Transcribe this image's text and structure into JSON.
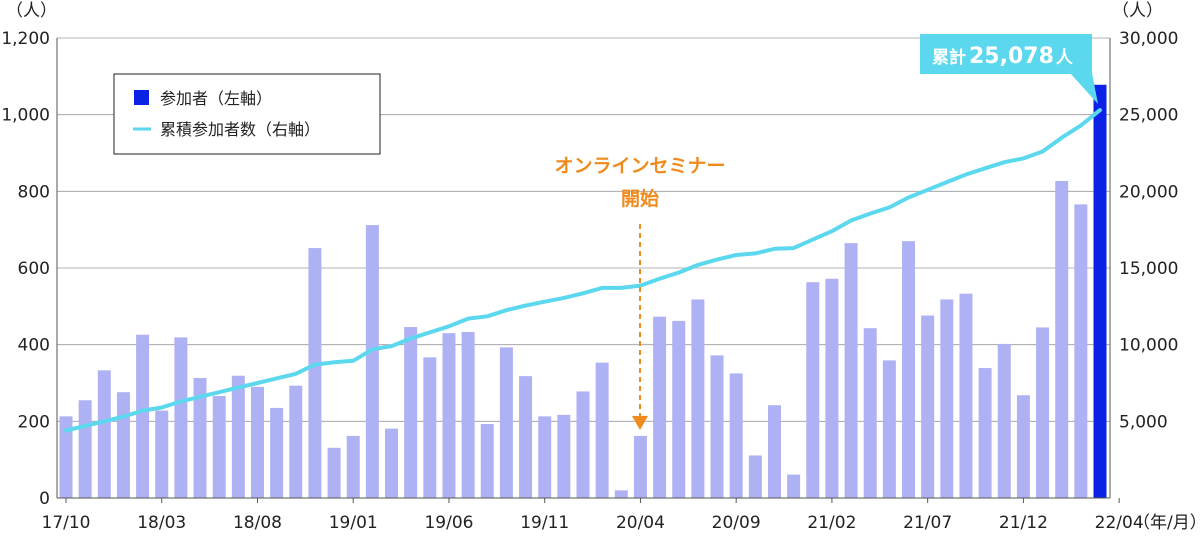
{
  "chart_data": {
    "type": "bar+line",
    "left_unit": "（人）",
    "right_unit": "（人）",
    "x_unit": "（年/月）",
    "left_axis": {
      "min": 0,
      "max": 1200,
      "ticks": [
        "0",
        "200",
        "400",
        "600",
        "800",
        "1,000",
        "1,200"
      ]
    },
    "right_axis": {
      "min": 0,
      "max": 30000,
      "ticks": [
        "5,000",
        "10,000",
        "15,000",
        "20,000",
        "25,000",
        "30,000"
      ]
    },
    "x_tick_labels": [
      "17/10",
      "18/03",
      "18/08",
      "19/01",
      "19/06",
      "19/11",
      "20/04",
      "20/09",
      "21/02",
      "21/07",
      "21/12",
      "22/04"
    ],
    "x_tick_month_index": [
      0,
      5,
      10,
      15,
      20,
      25,
      30,
      35,
      40,
      45,
      50,
      55
    ],
    "colors": {
      "bar": "#aeb2f4",
      "bar_highlight": "#0b22e6",
      "line": "#5bd8ee",
      "annotation": "#f08a1c",
      "callout_bg": "#5bd8ee",
      "grid": "#9a9a9a"
    },
    "legend": {
      "items": [
        {
          "label": "参加者（左軸）",
          "swatch": "square"
        },
        {
          "label": "累積参加者数（右軸）",
          "swatch": "line"
        }
      ]
    },
    "annotation": {
      "line1": "オンラインセミナー",
      "line2": "開始",
      "month_index": 30
    },
    "callout": {
      "prefix": "累計",
      "value": "25,078",
      "suffix": "人"
    },
    "series": [
      {
        "name": "参加者",
        "axis": "left",
        "values": [
          213,
          255,
          333,
          276,
          426,
          228,
          419,
          313,
          266,
          319,
          290,
          235,
          293,
          652,
          131,
          162,
          712,
          181,
          446,
          367,
          430,
          433,
          193,
          393,
          318,
          213,
          217,
          278,
          353,
          20,
          162,
          473,
          462,
          518,
          372,
          325,
          111,
          242,
          61,
          563,
          572,
          665,
          443,
          359,
          670,
          476,
          518,
          533,
          339,
          402,
          268,
          445,
          827,
          766,
          1078
        ],
        "highlight_last": true
      },
      {
        "name": "累積参加者数",
        "axis": "right",
        "values": [
          4400,
          4700,
          5000,
          5300,
          5700,
          5900,
          6300,
          6600,
          6900,
          7200,
          7500,
          7800,
          8100,
          8700,
          8850,
          8950,
          9700,
          9900,
          10400,
          10800,
          11200,
          11700,
          11850,
          12250,
          12550,
          12800,
          13050,
          13350,
          13700,
          13700,
          13850,
          14300,
          14700,
          15200,
          15550,
          15850,
          15950,
          16250,
          16300,
          16850,
          17400,
          18100,
          18550,
          18950,
          19600,
          20100,
          20600,
          21100,
          21500,
          21900,
          22150,
          22600,
          23500,
          24300,
          25300
        ]
      }
    ]
  }
}
